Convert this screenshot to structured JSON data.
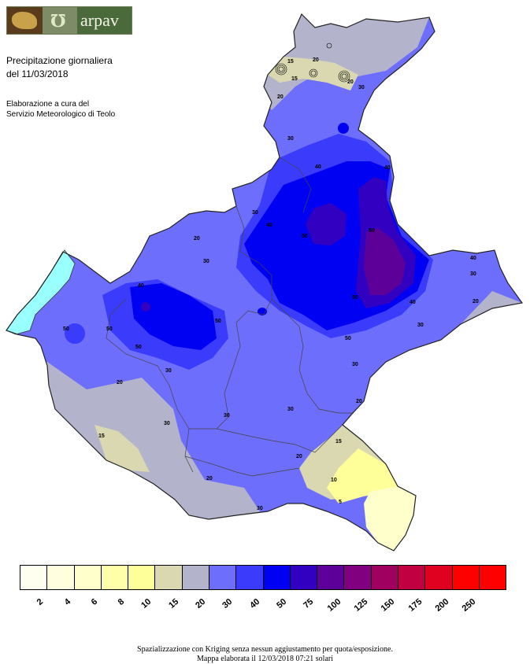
{
  "logo": {
    "text": "arpav"
  },
  "title": {
    "line1": "Precipitazione giornaliera",
    "line2": "del 11/03/2018"
  },
  "credits": {
    "line1": "Elaborazione a cura del",
    "line2": "Servizio Meteorologico di Teolo"
  },
  "legend": {
    "classes": [
      {
        "label": "2",
        "color": "#fffff0"
      },
      {
        "label": "4",
        "color": "#ffffe0"
      },
      {
        "label": "6",
        "color": "#ffffcc"
      },
      {
        "label": "8",
        "color": "#ffffaa"
      },
      {
        "label": "10",
        "color": "#ffff99"
      },
      {
        "label": "15",
        "color": "#d9d8b0"
      },
      {
        "label": "20",
        "color": "#b3b3cc"
      },
      {
        "label": "30",
        "color": "#6e6efc"
      },
      {
        "label": "40",
        "color": "#3b3bfb"
      },
      {
        "label": "50",
        "color": "#0000f2"
      },
      {
        "label": "75",
        "color": "#3200c0"
      },
      {
        "label": "100",
        "color": "#5c0099"
      },
      {
        "label": "125",
        "color": "#800080"
      },
      {
        "label": "150",
        "color": "#a00060"
      },
      {
        "label": "175",
        "color": "#c00040"
      },
      {
        "label": "200",
        "color": "#e00020"
      },
      {
        "label": "250",
        "color": "#ff0000"
      },
      {
        "label": "",
        "color": "#ff0000"
      }
    ]
  },
  "contour_labels": [
    "5",
    "10",
    "15",
    "20",
    "30",
    "40",
    "50",
    "75"
  ],
  "footer": {
    "line1": "Spazializzazione con Kriging senza nessun aggiustamento per quota/esposizione.",
    "line2": "Mappa elaborata il 12/03/2018 07:21 solari"
  },
  "colors": {
    "lake": "#99ffff",
    "boundary": "#555555"
  }
}
